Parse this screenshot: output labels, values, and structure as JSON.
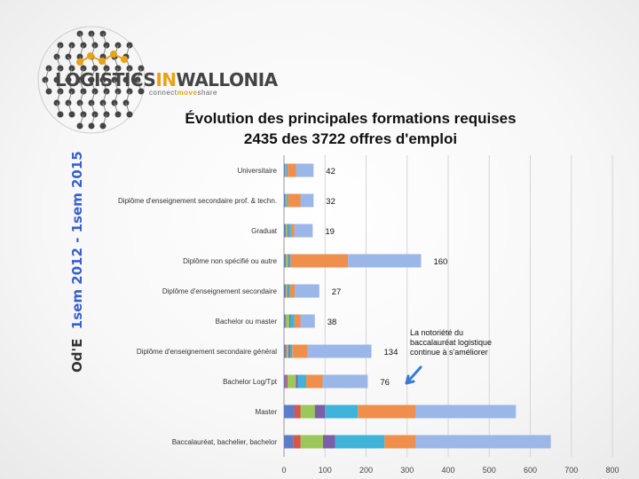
{
  "logo": {
    "name_part1": "LOGISTICS",
    "name_part2": "IN",
    "name_part3": "WALLONIA",
    "tagline_part1": "connect",
    "tagline_part2": "move",
    "tagline_part3": "share"
  },
  "side_label": {
    "prefix": "Od'E",
    "period": "1sem 2012 - 1sem 2015"
  },
  "chart_data": {
    "type": "bar",
    "orientation": "horizontal",
    "stacked": true,
    "title": "Évolution des principales formations requises",
    "subtitle": "2435 des 3722 offres d'emploi",
    "xlim": [
      0,
      800
    ],
    "xticks": [
      0,
      100,
      200,
      300,
      400,
      500,
      600,
      700,
      800
    ],
    "grid": true,
    "categories": [
      "Universitaire",
      "Diplôme d'enseignement secondaire prof. & techn.",
      "Graduat",
      "Diplôme non spécifié ou autre",
      "Diplôme d'enseignement secondaire",
      "Bachelor ou master",
      "Diplôme d'enseignement secondaire général",
      "Bachelor Log/Tpt",
      "Master",
      "Baccalauréat, bachelier, bachelor"
    ],
    "labels": [
      "42",
      "32",
      "19",
      "160",
      "27",
      "38",
      "134",
      "76",
      "",
      ""
    ],
    "series": [
      {
        "values": [
          2,
          3,
          3,
          3,
          3,
          3,
          4,
          5,
          25,
          22
        ],
        "color": "#5b7fc7"
      },
      {
        "values": [
          1,
          1,
          2,
          2,
          2,
          2,
          2,
          4,
          15,
          18
        ],
        "color": "#d9534f"
      },
      {
        "values": [
          2,
          2,
          4,
          5,
          3,
          8,
          5,
          20,
          35,
          55
        ],
        "color": "#9bc85a"
      },
      {
        "values": [
          1,
          1,
          2,
          2,
          2,
          2,
          3,
          5,
          25,
          30
        ],
        "color": "#7a5fa8"
      },
      {
        "values": [
          3,
          3,
          6,
          4,
          4,
          10,
          6,
          20,
          80,
          120
        ],
        "color": "#3fb3d9"
      },
      {
        "values": [
          21,
          30,
          8,
          140,
          12,
          15,
          38,
          40,
          140,
          75
        ],
        "color": "#f08f4c"
      },
      {
        "values": [
          42,
          32,
          45,
          178,
          60,
          35,
          155,
          110,
          245,
          330
        ],
        "color": "#9bb7e8"
      }
    ],
    "annotation": {
      "lines": [
        "La notoriété du",
        "baccalauréat logistique",
        "continue à s'améliorer"
      ]
    }
  }
}
